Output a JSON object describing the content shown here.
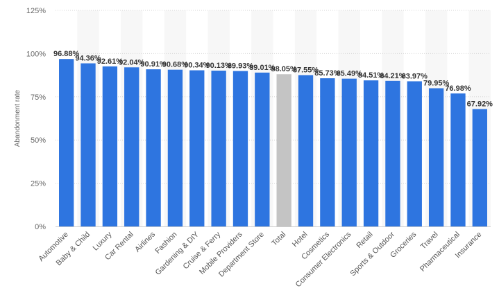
{
  "chart_data": {
    "type": "bar",
    "ylabel": "Abandonment rate",
    "ylim": [
      0,
      125
    ],
    "yticks": [
      0,
      25,
      50,
      75,
      100,
      125
    ],
    "ytick_labels": [
      "0%",
      "25%",
      "50%",
      "75%",
      "100%",
      "125%"
    ],
    "grid": true,
    "categories": [
      "Automotive",
      "Baby & Child",
      "Luxury",
      "Car Rental",
      "Airlines",
      "Fashion",
      "Gardening & DIY",
      "Cruise & Ferry",
      "Mobile Providers",
      "Department Store",
      "Total",
      "Hotel",
      "Cosmetics",
      "Consumer Electronics",
      "Retail",
      "Sports & Outdoor",
      "Groceries",
      "Travel",
      "Pharmaceutical",
      "Insurance"
    ],
    "values": [
      96.88,
      94.36,
      92.61,
      92.04,
      90.91,
      90.68,
      90.34,
      90.13,
      89.93,
      89.01,
      88.05,
      87.55,
      85.73,
      85.49,
      84.51,
      84.21,
      83.97,
      79.95,
      76.98,
      67.92
    ],
    "data_labels": [
      "96.88%",
      "94.36%",
      "92.61%",
      "92.04%",
      "90.91%",
      "90.68%",
      "90.34%",
      "90.13%",
      "89.93%",
      "89.01%",
      "88.05%",
      "87.55%",
      "85.73%",
      "85.49%",
      "84.51%",
      "84.21%",
      "83.97%",
      "79.95%",
      "76.98%",
      "67.92%"
    ],
    "colors": {
      "bar": "#2e75e0",
      "highlight": "#c4c4c4",
      "band": "#f7f7f7",
      "grid": "#d4d4d4",
      "axis": "#cccccc"
    },
    "highlight_category": "Total"
  }
}
